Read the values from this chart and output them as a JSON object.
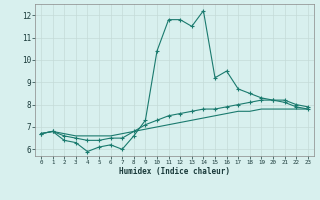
{
  "xlabel": "Humidex (Indice chaleur)",
  "x_values": [
    0,
    1,
    2,
    3,
    4,
    5,
    6,
    7,
    8,
    9,
    10,
    11,
    12,
    13,
    14,
    15,
    16,
    17,
    18,
    19,
    20,
    21,
    22,
    23
  ],
  "line1": [
    6.7,
    6.8,
    6.4,
    6.3,
    5.9,
    6.1,
    6.2,
    6.0,
    6.6,
    7.3,
    10.4,
    11.8,
    11.8,
    11.5,
    12.2,
    9.2,
    9.5,
    8.7,
    8.5,
    8.3,
    8.2,
    8.1,
    7.9,
    7.8
  ],
  "line2": [
    6.7,
    6.8,
    6.6,
    6.5,
    6.4,
    6.4,
    6.5,
    6.5,
    6.8,
    7.1,
    7.3,
    7.5,
    7.6,
    7.7,
    7.8,
    7.8,
    7.9,
    8.0,
    8.1,
    8.2,
    8.2,
    8.2,
    8.0,
    7.9
  ],
  "line3": [
    6.7,
    6.8,
    6.7,
    6.6,
    6.6,
    6.6,
    6.6,
    6.7,
    6.8,
    6.9,
    7.0,
    7.1,
    7.2,
    7.3,
    7.4,
    7.5,
    7.6,
    7.7,
    7.7,
    7.8,
    7.8,
    7.8,
    7.8,
    7.8
  ],
  "line_color": "#1a7a6e",
  "bg_color": "#d8f0ee",
  "grid_color": "#c4dbd8",
  "xlim": [
    -0.5,
    23.5
  ],
  "ylim": [
    5.7,
    12.5
  ],
  "yticks": [
    6,
    7,
    8,
    9,
    10,
    11,
    12
  ],
  "xticks": [
    0,
    1,
    2,
    3,
    4,
    5,
    6,
    7,
    8,
    9,
    10,
    11,
    12,
    13,
    14,
    15,
    16,
    17,
    18,
    19,
    20,
    21,
    22,
    23
  ],
  "marker": "+",
  "marker_size": 3,
  "linewidth": 0.8
}
